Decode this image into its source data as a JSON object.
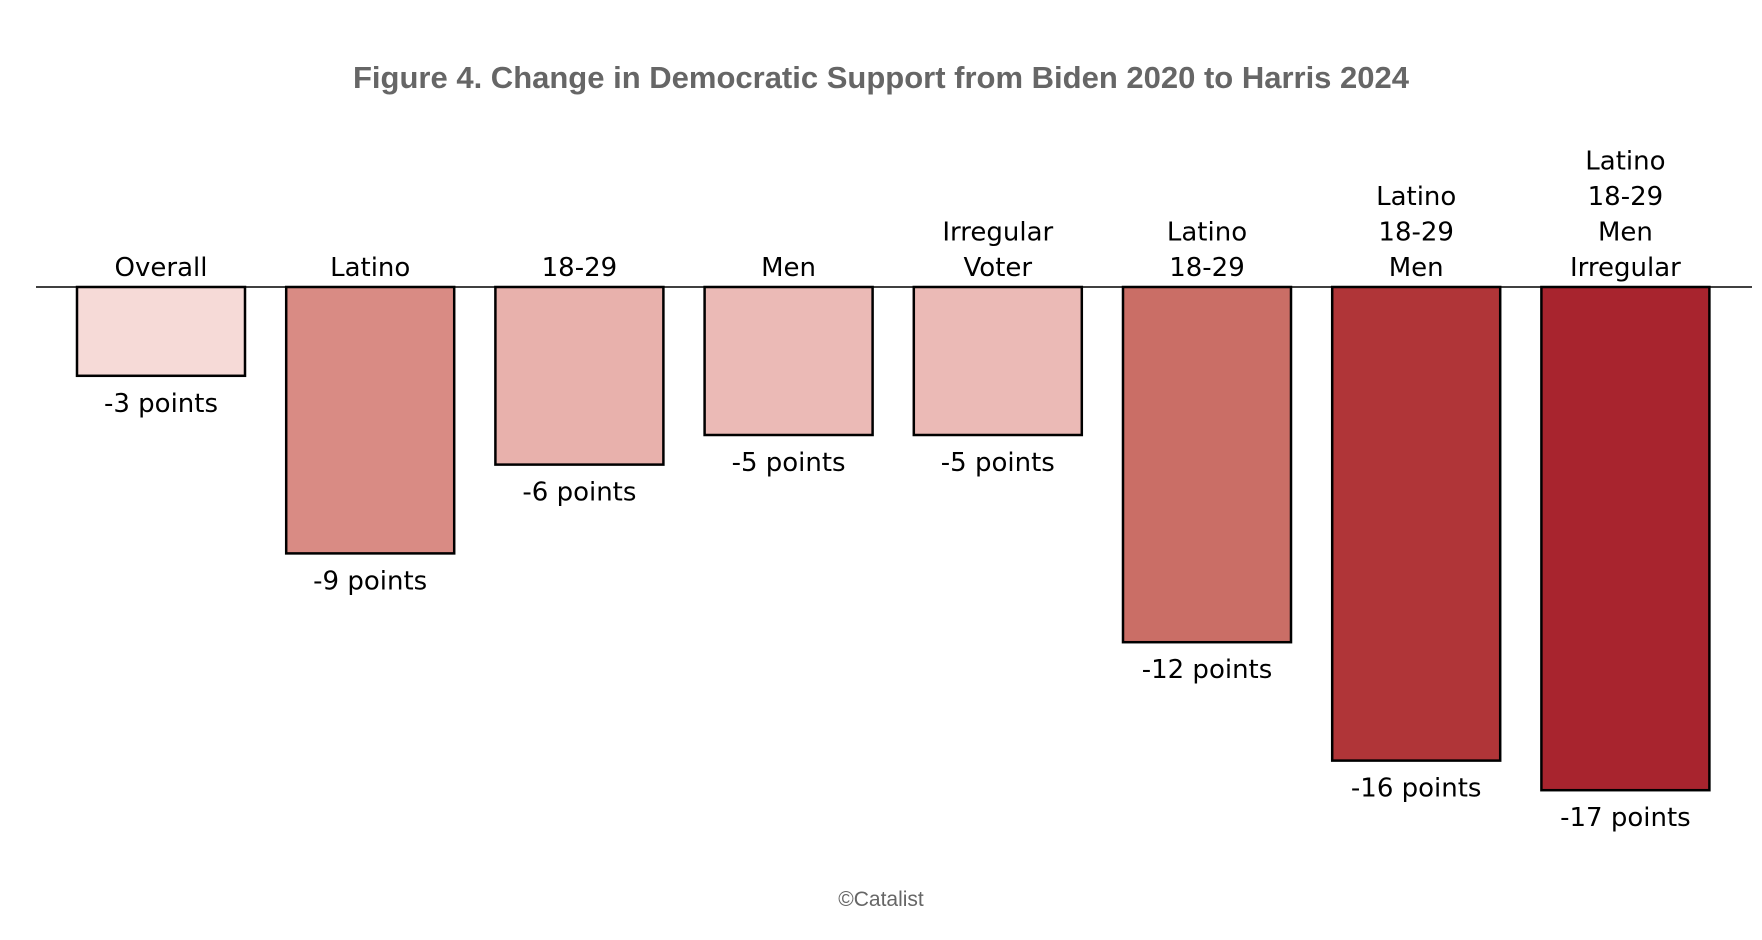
{
  "chart_data": {
    "type": "bar",
    "title": "Figure 4. Change in Democratic Support from Biden 2020 to Harris 2024",
    "categories": [
      [
        "Overall"
      ],
      [
        "Latino"
      ],
      [
        "18-29"
      ],
      [
        "Men"
      ],
      [
        "Irregular",
        "Voter"
      ],
      [
        "Latino",
        "18-29"
      ],
      [
        "Latino",
        "18-29",
        "Men"
      ],
      [
        "Latino",
        "18-29",
        "Men",
        "Irregular"
      ]
    ],
    "values": [
      -3,
      -9,
      -6,
      -5,
      -5,
      -12,
      -16,
      -17
    ],
    "value_labels": [
      "-3 points",
      "-9 points",
      "-6 points",
      "-5 points",
      "-5 points",
      "-12 points",
      "-16 points",
      "-17 points"
    ],
    "colors": [
      "#f6dad7",
      "#d98b84",
      "#e8b1ac",
      "#ebbab6",
      "#ebbab6",
      "#ca6e66",
      "#b03538",
      "#a8242e"
    ],
    "ylim": [
      -18,
      0
    ],
    "grid": false,
    "legend": "none"
  },
  "credit": "©Catalist"
}
